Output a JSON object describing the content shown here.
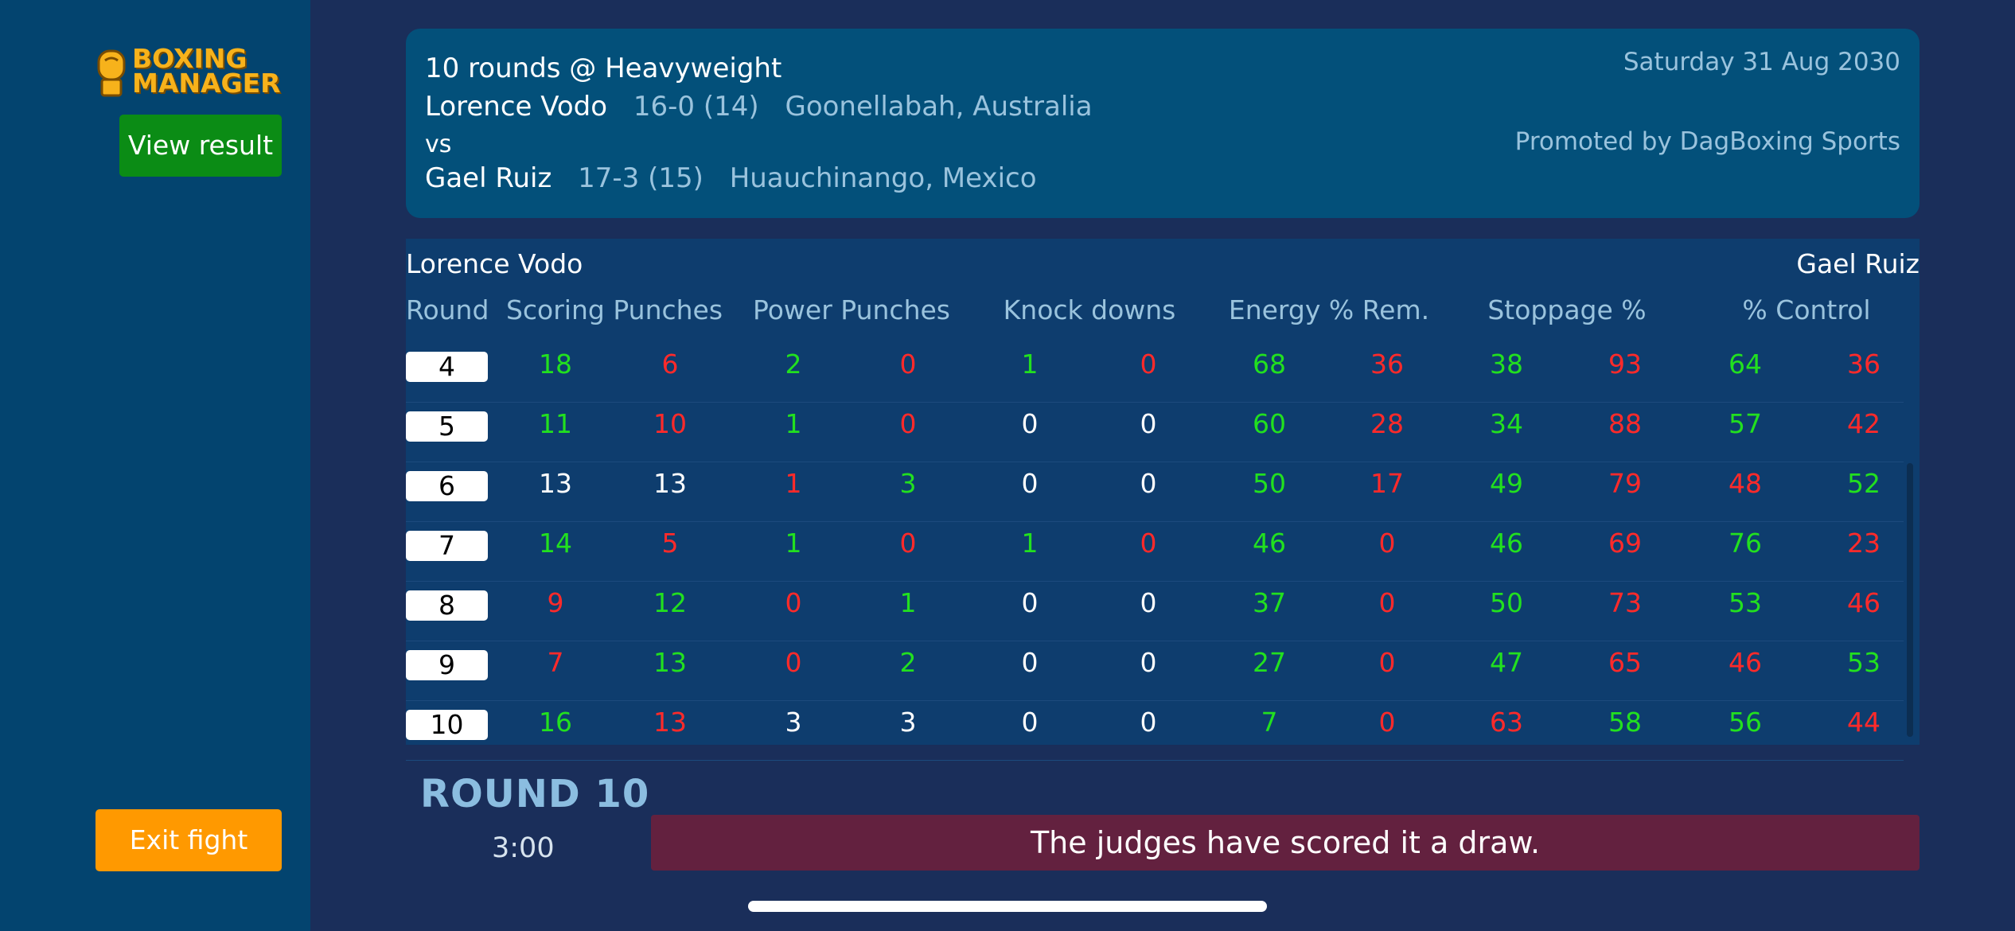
{
  "sidebar": {
    "logo_text": "BOXING MANAGER",
    "view_result_label": "View result",
    "exit_fight_label": "Exit fight"
  },
  "fight": {
    "title": "10 rounds @ Heavyweight",
    "date": "Saturday 31 Aug 2030",
    "promoter": "Promoted by DagBoxing Sports",
    "vs": "vs",
    "fighter_a": {
      "name": "Lorence Vodo",
      "record": "16-0 (14)",
      "hometown": "Goonellabah, Australia"
    },
    "fighter_b": {
      "name": "Gael Ruiz",
      "record": "17-3 (15)",
      "hometown": "Huauchinango, Mexico"
    }
  },
  "table": {
    "left_fighter": "Lorence Vodo",
    "right_fighter": "Gael Ruiz",
    "headers": [
      "Round",
      "Scoring Punches",
      "Power Punches",
      "Knock downs",
      "Energy % Rem.",
      "Stoppage %",
      "% Control"
    ],
    "rows": [
      {
        "round": "4",
        "cells": [
          [
            "18",
            "g"
          ],
          [
            "6",
            "r"
          ],
          [
            "2",
            "g"
          ],
          [
            "0",
            "r"
          ],
          [
            "1",
            "g"
          ],
          [
            "0",
            "r"
          ],
          [
            "68",
            "g"
          ],
          [
            "36",
            "r"
          ],
          [
            "38",
            "g"
          ],
          [
            "93",
            "r"
          ],
          [
            "64",
            "g"
          ],
          [
            "36",
            "r"
          ]
        ]
      },
      {
        "round": "5",
        "cells": [
          [
            "11",
            "g"
          ],
          [
            "10",
            "r"
          ],
          [
            "1",
            "g"
          ],
          [
            "0",
            "r"
          ],
          [
            "0",
            "w"
          ],
          [
            "0",
            "w"
          ],
          [
            "60",
            "g"
          ],
          [
            "28",
            "r"
          ],
          [
            "34",
            "g"
          ],
          [
            "88",
            "r"
          ],
          [
            "57",
            "g"
          ],
          [
            "42",
            "r"
          ]
        ]
      },
      {
        "round": "6",
        "cells": [
          [
            "13",
            "w"
          ],
          [
            "13",
            "w"
          ],
          [
            "1",
            "r"
          ],
          [
            "3",
            "g"
          ],
          [
            "0",
            "w"
          ],
          [
            "0",
            "w"
          ],
          [
            "50",
            "g"
          ],
          [
            "17",
            "r"
          ],
          [
            "49",
            "g"
          ],
          [
            "79",
            "r"
          ],
          [
            "48",
            "r"
          ],
          [
            "52",
            "g"
          ]
        ]
      },
      {
        "round": "7",
        "cells": [
          [
            "14",
            "g"
          ],
          [
            "5",
            "r"
          ],
          [
            "1",
            "g"
          ],
          [
            "0",
            "r"
          ],
          [
            "1",
            "g"
          ],
          [
            "0",
            "r"
          ],
          [
            "46",
            "g"
          ],
          [
            "0",
            "r"
          ],
          [
            "46",
            "g"
          ],
          [
            "69",
            "r"
          ],
          [
            "76",
            "g"
          ],
          [
            "23",
            "r"
          ]
        ]
      },
      {
        "round": "8",
        "cells": [
          [
            "9",
            "r"
          ],
          [
            "12",
            "g"
          ],
          [
            "0",
            "r"
          ],
          [
            "1",
            "g"
          ],
          [
            "0",
            "w"
          ],
          [
            "0",
            "w"
          ],
          [
            "37",
            "g"
          ],
          [
            "0",
            "r"
          ],
          [
            "50",
            "g"
          ],
          [
            "73",
            "r"
          ],
          [
            "53",
            "g"
          ],
          [
            "46",
            "r"
          ]
        ]
      },
      {
        "round": "9",
        "cells": [
          [
            "7",
            "r"
          ],
          [
            "13",
            "g"
          ],
          [
            "0",
            "r"
          ],
          [
            "2",
            "g"
          ],
          [
            "0",
            "w"
          ],
          [
            "0",
            "w"
          ],
          [
            "27",
            "g"
          ],
          [
            "0",
            "r"
          ],
          [
            "47",
            "g"
          ],
          [
            "65",
            "r"
          ],
          [
            "46",
            "r"
          ],
          [
            "53",
            "g"
          ]
        ]
      },
      {
        "round": "10",
        "cells": [
          [
            "16",
            "g"
          ],
          [
            "13",
            "r"
          ],
          [
            "3",
            "w"
          ],
          [
            "3",
            "w"
          ],
          [
            "0",
            "w"
          ],
          [
            "0",
            "w"
          ],
          [
            "7",
            "g"
          ],
          [
            "0",
            "r"
          ],
          [
            "63",
            "r"
          ],
          [
            "58",
            "g"
          ],
          [
            "56",
            "g"
          ],
          [
            "44",
            "r"
          ]
        ]
      }
    ]
  },
  "status": {
    "round_label": "ROUND 10",
    "clock": "3:00",
    "result_text": "The judges have scored it a draw."
  },
  "colors": {
    "green": "#22e01f",
    "red": "#ff2a2a",
    "white": "#ffffff",
    "accent_orange": "#ff9900",
    "accent_green": "#0b8c15"
  }
}
